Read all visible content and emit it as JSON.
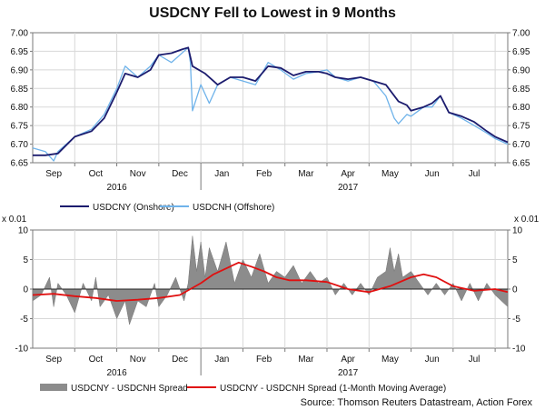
{
  "title": "USDCNY Fell to Lowest in 9 Months",
  "source": "Source: Thomson Reuters Datastream, Action Forex",
  "colors": {
    "onshore": "#1c1c6e",
    "offshore": "#6fb3ea",
    "spread": "#8c8c8c",
    "spread_ma": "#e01010",
    "grid": "#d8d8d8"
  },
  "chart_data": [
    {
      "type": "line",
      "title": "USDCNY Fell to Lowest in 9 Months",
      "months": [
        "Sep",
        "Oct",
        "Nov",
        "Dec",
        "Jan",
        "Feb",
        "Mar",
        "Apr",
        "May",
        "Jun",
        "Jul"
      ],
      "years": [
        "2016",
        "2017"
      ],
      "x_unit": "month index (0 = start of Sep 2016)",
      "xlim": [
        0,
        11.3
      ],
      "ylim": [
        6.65,
        7.0
      ],
      "yticks": [
        "6.65",
        "6.70",
        "6.75",
        "6.80",
        "6.85",
        "6.90",
        "6.95",
        "7.00"
      ],
      "legend": [
        "USDCNY (Onshore)",
        "USDCNH (Offshore)"
      ],
      "legend_position": "bottom",
      "series": [
        {
          "name": "USDCNY (Onshore)",
          "x": [
            0.0,
            0.3,
            0.6,
            1.0,
            1.4,
            1.7,
            2.0,
            2.2,
            2.5,
            2.8,
            3.0,
            3.3,
            3.55,
            3.7,
            3.8,
            4.1,
            4.4,
            4.7,
            5.0,
            5.3,
            5.6,
            5.9,
            6.2,
            6.5,
            6.8,
            7.0,
            7.2,
            7.5,
            7.8,
            8.1,
            8.4,
            8.7,
            8.9,
            9.0,
            9.3,
            9.5,
            9.7,
            9.9,
            10.2,
            10.5,
            10.8,
            11.0,
            11.3
          ],
          "values": [
            6.67,
            6.67,
            6.675,
            6.72,
            6.735,
            6.77,
            6.84,
            6.89,
            6.88,
            6.9,
            6.94,
            6.945,
            6.955,
            6.96,
            6.91,
            6.89,
            6.86,
            6.88,
            6.88,
            6.87,
            6.91,
            6.905,
            6.885,
            6.895,
            6.895,
            6.89,
            6.88,
            6.875,
            6.88,
            6.87,
            6.86,
            6.815,
            6.805,
            6.79,
            6.8,
            6.81,
            6.83,
            6.785,
            6.775,
            6.76,
            6.735,
            6.72,
            6.705
          ]
        },
        {
          "name": "USDCNH (Offshore)",
          "x": [
            0.0,
            0.3,
            0.5,
            0.6,
            1.0,
            1.4,
            1.7,
            2.0,
            2.2,
            2.5,
            2.8,
            3.0,
            3.3,
            3.5,
            3.7,
            3.75,
            3.8,
            4.0,
            4.2,
            4.4,
            4.7,
            5.0,
            5.3,
            5.6,
            5.9,
            6.2,
            6.5,
            6.8,
            7.0,
            7.2,
            7.5,
            7.8,
            8.1,
            8.4,
            8.6,
            8.7,
            8.9,
            9.0,
            9.3,
            9.5,
            9.7,
            9.9,
            10.2,
            10.5,
            10.8,
            11.0,
            11.3
          ],
          "values": [
            6.69,
            6.68,
            6.655,
            6.68,
            6.72,
            6.74,
            6.78,
            6.85,
            6.91,
            6.88,
            6.91,
            6.94,
            6.92,
            6.94,
            6.96,
            6.92,
            6.79,
            6.86,
            6.81,
            6.86,
            6.88,
            6.87,
            6.86,
            6.92,
            6.9,
            6.875,
            6.89,
            6.895,
            6.9,
            6.88,
            6.87,
            6.88,
            6.87,
            6.83,
            6.77,
            6.755,
            6.78,
            6.775,
            6.8,
            6.8,
            6.83,
            6.785,
            6.77,
            6.75,
            6.73,
            6.715,
            6.7
          ]
        }
      ]
    },
    {
      "type": "area",
      "title": "",
      "y_unit_label": "x 0.01",
      "months": [
        "Sep",
        "Oct",
        "Nov",
        "Dec",
        "Jan",
        "Feb",
        "Mar",
        "Apr",
        "May",
        "Jun",
        "Jul"
      ],
      "years": [
        "2016",
        "2017"
      ],
      "xlim": [
        0,
        11.3
      ],
      "ylim": [
        -10,
        10
      ],
      "yticks": [
        "10",
        "5",
        "0",
        "-5",
        "-10"
      ],
      "legend": [
        "USDCNY - USDCNH Spread",
        "USDCNY - USDCNH Spread (1-Month Moving Average)"
      ],
      "legend_position": "bottom",
      "series": [
        {
          "name": "USDCNY - USDCNH Spread",
          "x": [
            0.0,
            0.2,
            0.4,
            0.5,
            0.6,
            0.8,
            1.0,
            1.2,
            1.4,
            1.5,
            1.6,
            1.8,
            2.0,
            2.2,
            2.3,
            2.5,
            2.7,
            2.9,
            3.0,
            3.2,
            3.4,
            3.6,
            3.7,
            3.8,
            3.9,
            4.0,
            4.1,
            4.2,
            4.4,
            4.6,
            4.8,
            5.0,
            5.2,
            5.4,
            5.6,
            5.8,
            6.0,
            6.2,
            6.4,
            6.6,
            6.8,
            7.0,
            7.2,
            7.4,
            7.6,
            7.8,
            8.0,
            8.2,
            8.4,
            8.5,
            8.6,
            8.7,
            8.8,
            9.0,
            9.2,
            9.4,
            9.6,
            9.8,
            10.0,
            10.2,
            10.4,
            10.6,
            10.8,
            11.0,
            11.3
          ],
          "values": [
            -2,
            -1,
            2,
            -3,
            1,
            -1,
            -4,
            1,
            -2,
            2,
            -3,
            -1,
            -5,
            -2,
            -6,
            -2,
            -3,
            1,
            -3,
            -1,
            2,
            -2,
            1,
            9,
            3,
            8,
            2,
            7,
            3,
            8,
            1,
            5,
            2,
            6,
            1,
            3,
            2,
            4,
            1,
            3,
            1,
            2,
            -1,
            1,
            -1,
            1,
            -1,
            2,
            3,
            7,
            3,
            6,
            2,
            3,
            1,
            -1,
            1,
            -1,
            1,
            -2,
            1,
            -2,
            1,
            -1,
            -3
          ]
        },
        {
          "name": "USDCNY - USDCNH Spread (1-Month Moving Average)",
          "x": [
            0.0,
            0.5,
            1.0,
            1.5,
            2.0,
            2.5,
            3.0,
            3.5,
            4.0,
            4.3,
            4.6,
            4.9,
            5.2,
            5.5,
            5.8,
            6.1,
            6.5,
            7.0,
            7.5,
            8.0,
            8.5,
            9.0,
            9.3,
            9.6,
            10.0,
            10.5,
            11.0,
            11.3
          ],
          "values": [
            -1,
            -0.8,
            -1.2,
            -1.5,
            -2,
            -1.8,
            -1.5,
            -1,
            1,
            2.5,
            3.5,
            4.5,
            3.8,
            3,
            2,
            1.5,
            1.5,
            1.2,
            0,
            -0.5,
            0.5,
            2,
            2.5,
            2,
            0.5,
            -0.3,
            0,
            -0.5
          ]
        }
      ]
    }
  ]
}
